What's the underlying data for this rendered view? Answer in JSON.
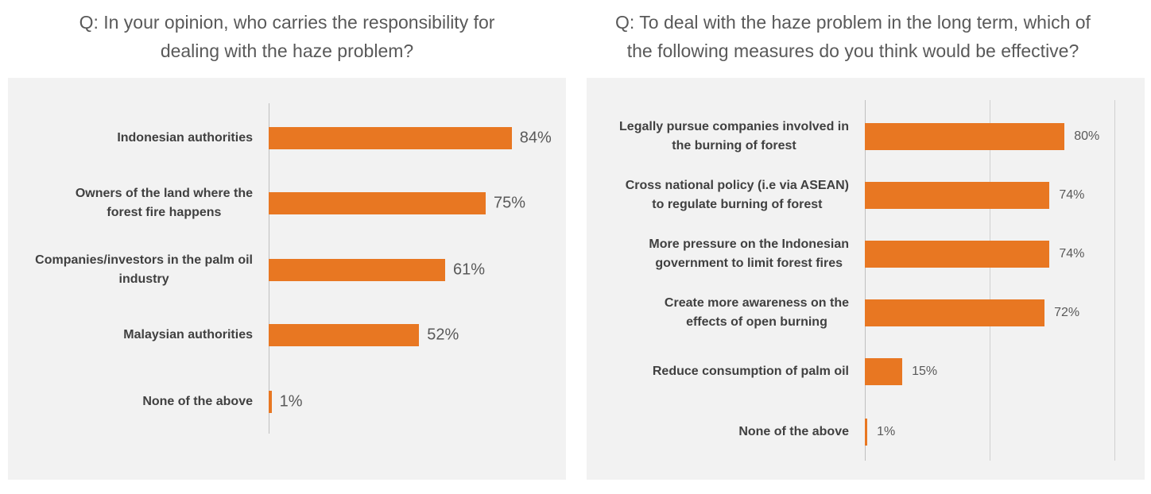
{
  "chart_data": [
    {
      "type": "hbar",
      "title": "Q: In your opinion, who carries the responsibility for\ndealing with the haze problem?",
      "categories": [
        "Indonesian authorities",
        "Owners of the land where the\nforest fire happens",
        "Companies/investors in the palm oil\nindustry",
        "Malaysian authorities",
        "None of the above"
      ],
      "values": [
        84,
        75,
        61,
        52,
        1
      ],
      "value_labels": [
        "84%",
        "75%",
        "61%",
        "52%",
        "1%"
      ],
      "color": "#e87722",
      "xlim": [
        0,
        100
      ]
    },
    {
      "type": "hbar",
      "title": "Q: To deal with the haze problem in the long term, which of\nthe following measures do you think would be effective?",
      "categories": [
        "Legally pursue companies involved in\nthe burning of forest",
        "Cross national policy (i.e via ASEAN)\nto regulate burning of forest",
        "More pressure on the Indonesian\ngovernment to limit forest fires",
        "Create more awareness on the\neffects of open burning",
        "Reduce consumption of palm oil",
        "None of the above"
      ],
      "values": [
        80,
        74,
        74,
        72,
        15,
        1
      ],
      "value_labels": [
        "80%",
        "74%",
        "74%",
        "72%",
        "15%",
        "1%"
      ],
      "color": "#e87722",
      "xlim": [
        0,
        100
      ],
      "grid_lines": [
        50,
        100
      ]
    }
  ]
}
